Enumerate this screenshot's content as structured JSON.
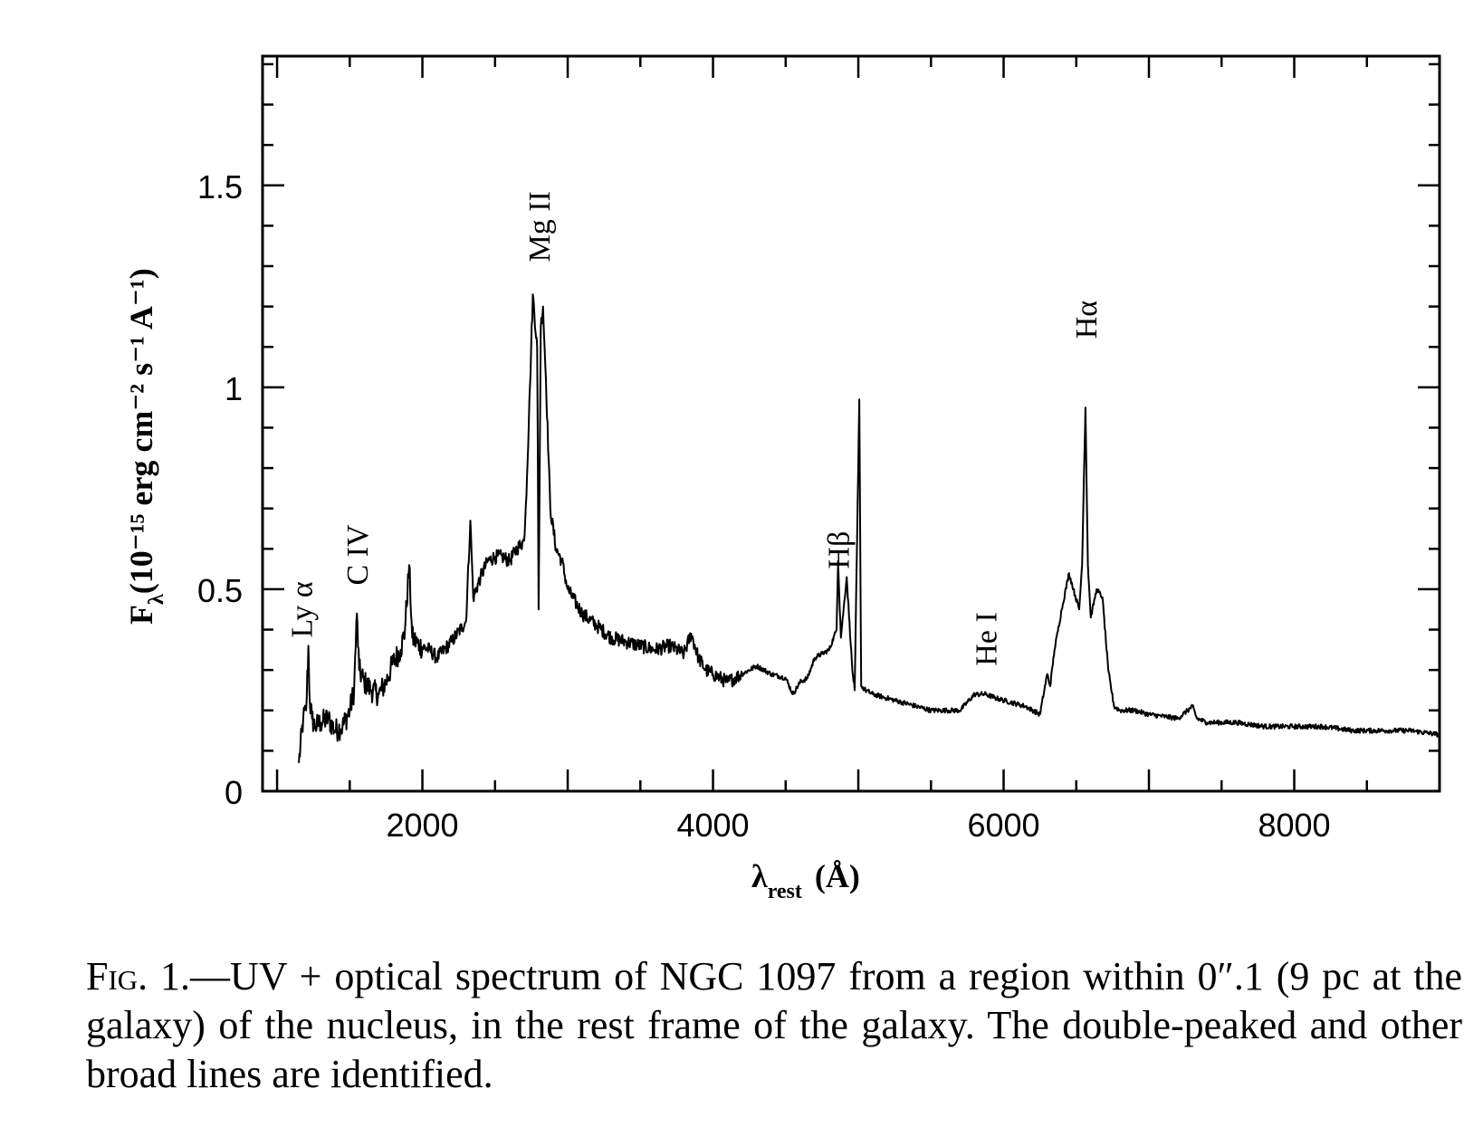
{
  "chart_data": {
    "type": "line",
    "xlabel": "λrest (Å)",
    "xlabel_main": "λ",
    "xlabel_sub": "rest",
    "xlabel_unit": "(Å)",
    "ylabel": "Fλ(10⁻¹⁵ erg cm⁻² s⁻¹ A⁻¹)",
    "ylabel_main": "F",
    "ylabel_sub": "λ",
    "ylabel_unit": "(10⁻¹⁵ erg cm⁻² s⁻¹ A⁻¹)",
    "xlim": [
      900,
      9000
    ],
    "ylim": [
      0,
      1.82
    ],
    "x_ticks": [
      2000,
      4000,
      6000,
      8000
    ],
    "x_tick_labels": [
      "2000",
      "4000",
      "6000",
      "8000"
    ],
    "y_ticks": [
      0,
      0.5,
      1,
      1.5
    ],
    "y_tick_labels": [
      "0",
      "0.5",
      "1",
      "1.5"
    ],
    "series": [
      {
        "color": "#000000",
        "x": [
          1150,
          1180,
          1200,
          1215,
          1225,
          1240,
          1260,
          1300,
          1350,
          1400,
          1450,
          1500,
          1530,
          1549,
          1565,
          1600,
          1650,
          1700,
          1750,
          1800,
          1850,
          1880,
          1909,
          1930,
          1980,
          2050,
          2100,
          2200,
          2300,
          2330,
          2350,
          2400,
          2450,
          2500,
          2550,
          2600,
          2650,
          2700,
          2720,
          2740,
          2760,
          2790,
          2800,
          2815,
          2830,
          2850,
          2880,
          2920,
          2960,
          3000,
          3100,
          3200,
          3300,
          3400,
          3500,
          3600,
          3700,
          3800,
          3850,
          3900,
          3950,
          4000,
          4100,
          4200,
          4300,
          4400,
          4500,
          4550,
          4600,
          4650,
          4700,
          4750,
          4800,
          4850,
          4861,
          4880,
          4920,
          4959,
          4975,
          5007,
          5020,
          5050,
          5100,
          5200,
          5300,
          5400,
          5500,
          5600,
          5700,
          5800,
          5876,
          5950,
          6050,
          6150,
          6250,
          6300,
          6320,
          6350,
          6400,
          6450,
          6480,
          6520,
          6540,
          6563,
          6580,
          6600,
          6640,
          6680,
          6720,
          6760,
          6800,
          6900,
          7000,
          7200,
          7300,
          7330,
          7400,
          7600,
          7800,
          8000,
          8200,
          8400,
          8600,
          8800,
          9000
        ],
        "y": [
          0.07,
          0.18,
          0.2,
          0.36,
          0.22,
          0.18,
          0.16,
          0.17,
          0.18,
          0.15,
          0.16,
          0.2,
          0.25,
          0.44,
          0.3,
          0.27,
          0.25,
          0.24,
          0.27,
          0.32,
          0.35,
          0.4,
          0.56,
          0.38,
          0.36,
          0.35,
          0.33,
          0.37,
          0.42,
          0.67,
          0.48,
          0.53,
          0.57,
          0.58,
          0.58,
          0.57,
          0.6,
          0.62,
          0.78,
          1.0,
          1.23,
          1.1,
          0.45,
          1.15,
          1.2,
          1.02,
          0.7,
          0.6,
          0.57,
          0.5,
          0.44,
          0.41,
          0.38,
          0.37,
          0.36,
          0.35,
          0.36,
          0.34,
          0.39,
          0.33,
          0.3,
          0.29,
          0.27,
          0.29,
          0.31,
          0.29,
          0.28,
          0.24,
          0.27,
          0.28,
          0.33,
          0.34,
          0.35,
          0.4,
          0.57,
          0.38,
          0.53,
          0.3,
          0.25,
          0.97,
          0.26,
          0.25,
          0.24,
          0.23,
          0.22,
          0.21,
          0.2,
          0.2,
          0.2,
          0.24,
          0.24,
          0.23,
          0.22,
          0.21,
          0.19,
          0.29,
          0.26,
          0.35,
          0.45,
          0.54,
          0.5,
          0.45,
          0.56,
          0.95,
          0.56,
          0.43,
          0.5,
          0.48,
          0.3,
          0.21,
          0.2,
          0.2,
          0.19,
          0.18,
          0.21,
          0.18,
          0.17,
          0.17,
          0.16,
          0.16,
          0.16,
          0.15,
          0.15,
          0.15,
          0.14
        ]
      }
    ],
    "annotations": [
      {
        "text": "Ly α",
        "x": 1216
      },
      {
        "text": "C IV",
        "x": 1549
      },
      {
        "text": "Mg II",
        "x": 2800
      },
      {
        "text": "Hβ",
        "x": 4861
      },
      {
        "text": "He I",
        "x": 5876
      },
      {
        "text": "Hα",
        "x": 6563
      }
    ]
  },
  "caption": {
    "fig_label": "Fig. 1.",
    "text": "—UV + optical spectrum of NGC 1097 from a region within 0″.1 (9 pc at the galaxy) of the nucleus, in the rest frame of the galaxy. The double-peaked and other broad lines are identified."
  }
}
